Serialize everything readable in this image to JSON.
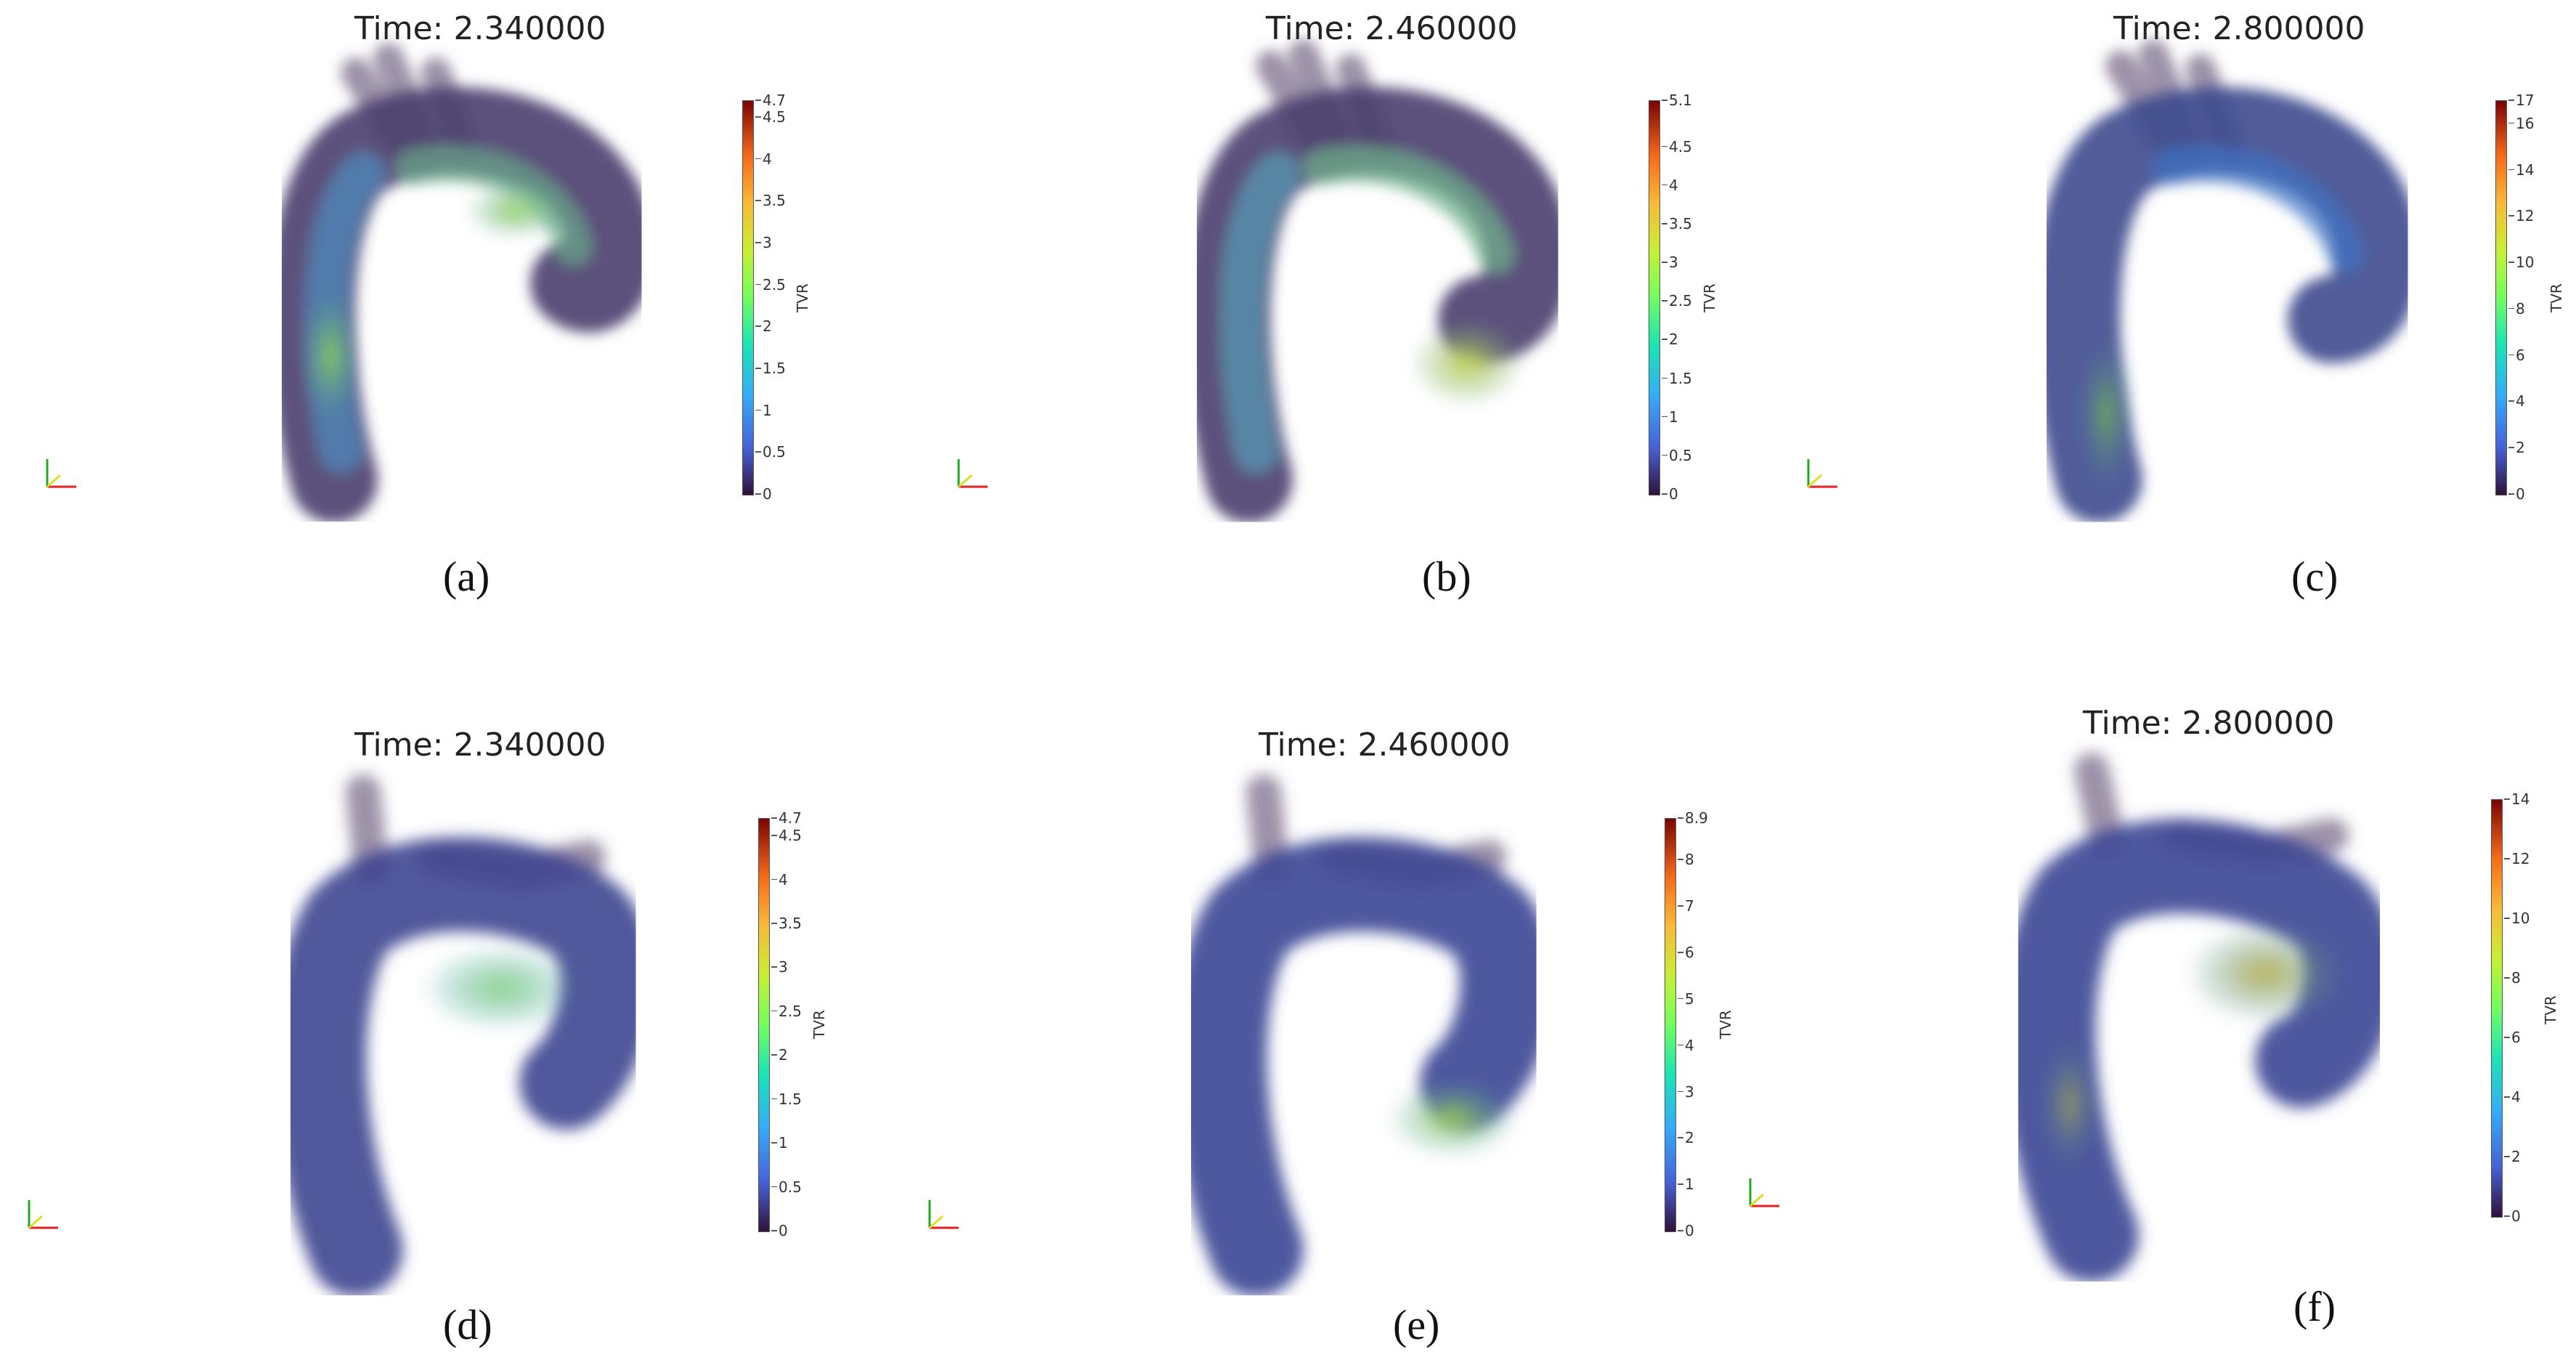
{
  "colormap": [
    "#30123b",
    "#4662d7",
    "#36aaf9",
    "#1ae4b6",
    "#72fe5e",
    "#c7ef34",
    "#faba39",
    "#f66b19",
    "#7a0403"
  ],
  "panels": [
    {
      "id": "a",
      "title": "Time: 2.340000",
      "caption": "(a)",
      "colorbar_label": "TVR",
      "cb_min": 0,
      "cb_max": 4.7,
      "ticks": [
        "0",
        "0.5",
        "1",
        "1.5",
        "2",
        "2.5",
        "3",
        "3.5",
        "4",
        "4.5",
        "4.7"
      ],
      "tick_values": [
        0,
        0.5,
        1,
        1.5,
        2,
        2.5,
        3,
        3.5,
        4,
        4.5,
        4.7
      ]
    },
    {
      "id": "b",
      "title": "Time: 2.460000",
      "caption": "(b)",
      "colorbar_label": "TVR",
      "cb_min": 0,
      "cb_max": 5.1,
      "ticks": [
        "0",
        "0.5",
        "1",
        "1.5",
        "2",
        "2.5",
        "3",
        "3.5",
        "4",
        "4.5",
        "5.1"
      ],
      "tick_values": [
        0,
        0.5,
        1,
        1.5,
        2,
        2.5,
        3,
        3.5,
        4,
        4.5,
        5.1
      ]
    },
    {
      "id": "c",
      "title": "Time: 2.800000",
      "caption": "(c)",
      "colorbar_label": "TVR",
      "cb_min": 0,
      "cb_max": 17,
      "ticks": [
        "0",
        "2",
        "4",
        "6",
        "8",
        "10",
        "12",
        "14",
        "16",
        "17"
      ],
      "tick_values": [
        0,
        2,
        4,
        6,
        8,
        10,
        12,
        14,
        16,
        17
      ]
    },
    {
      "id": "d",
      "title": "Time: 2.340000",
      "caption": "(d)",
      "colorbar_label": "TVR",
      "cb_min": 0,
      "cb_max": 4.7,
      "ticks": [
        "0",
        "0.5",
        "1",
        "1.5",
        "2",
        "2.5",
        "3",
        "3.5",
        "4",
        "4.5",
        "4.7"
      ],
      "tick_values": [
        0,
        0.5,
        1,
        1.5,
        2,
        2.5,
        3,
        3.5,
        4,
        4.5,
        4.7
      ]
    },
    {
      "id": "e",
      "title": "Time: 2.460000",
      "caption": "(e)",
      "colorbar_label": "TVR",
      "cb_min": 0,
      "cb_max": 8.9,
      "ticks": [
        "0",
        "1",
        "2",
        "3",
        "4",
        "5",
        "6",
        "7",
        "8",
        "8.9"
      ],
      "tick_values": [
        0,
        1,
        2,
        3,
        4,
        5,
        6,
        7,
        8,
        8.9
      ]
    },
    {
      "id": "f",
      "title": "Time: 2.800000",
      "caption": "(f)",
      "colorbar_label": "TVR",
      "cb_min": 0,
      "cb_max": 14,
      "ticks": [
        "0",
        "2",
        "4",
        "6",
        "8",
        "10",
        "12",
        "14"
      ],
      "tick_values": [
        0,
        2,
        4,
        6,
        8,
        10,
        12,
        14
      ]
    }
  ],
  "axes_labels": {
    "x": "x",
    "y": "y",
    "z": "z"
  }
}
